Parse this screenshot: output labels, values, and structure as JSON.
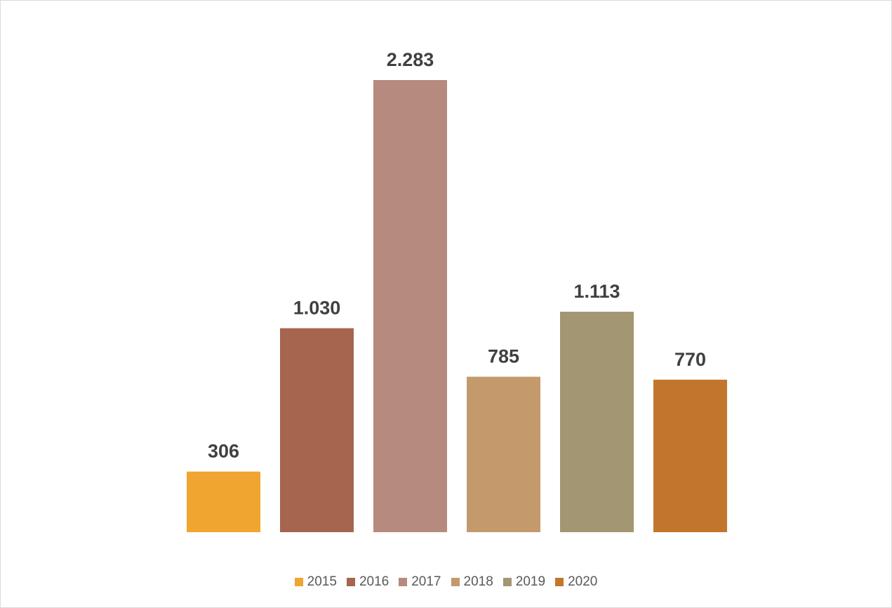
{
  "chart_data": {
    "type": "bar",
    "categories": [
      "2015",
      "2016",
      "2017",
      "2018",
      "2019",
      "2020"
    ],
    "values": [
      306,
      1030,
      2283,
      785,
      1113,
      770
    ],
    "data_labels": [
      "306",
      "1.030",
      "2.283",
      "785",
      "1.113",
      "770"
    ],
    "colors": [
      "#EFA52F",
      "#A5654E",
      "#B68A7F",
      "#C49A6C",
      "#A39673",
      "#C2762B"
    ],
    "title": "",
    "xlabel": "",
    "ylabel": "",
    "ylim": [
      0,
      2283
    ],
    "grid": false,
    "legend_position": "bottom",
    "legend": [
      "2015",
      "2016",
      "2017",
      "2018",
      "2019",
      "2020"
    ]
  }
}
